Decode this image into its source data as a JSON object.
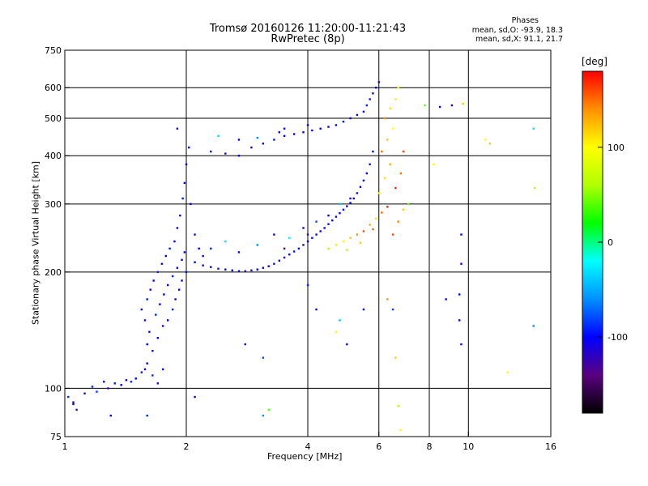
{
  "chart_data": {
    "type": "scatter",
    "title": "Tromsø 20160126 11:20:00-11:21:43",
    "subtitle": "RwPretec (8p)",
    "phase_box": {
      "label": "Phases",
      "line_o": "mean, sd,O: -93.9, 18.3",
      "line_x": "mean, sd,X:  91.1, 21.7"
    },
    "xlabel": "Frequency [MHz]",
    "ylabel": "Stationary phase Virtual Height [km]",
    "xscale": "log",
    "yscale": "log",
    "xlim": [
      1,
      16
    ],
    "ylim": [
      75,
      750
    ],
    "x_ticks": [
      {
        "value": 1,
        "label": "1"
      },
      {
        "value": 2,
        "label": "2"
      },
      {
        "value": 4,
        "label": "4"
      },
      {
        "value": 6,
        "label": "6"
      },
      {
        "value": 8,
        "label": "8"
      },
      {
        "value": 10,
        "label": "10"
      },
      {
        "value": 16,
        "label": "16"
      }
    ],
    "y_ticks": [
      {
        "value": 75,
        "label": "75"
      },
      {
        "value": 100,
        "label": "100"
      },
      {
        "value": 200,
        "label": "200"
      },
      {
        "value": 300,
        "label": "300"
      },
      {
        "value": 400,
        "label": "400"
      },
      {
        "value": 500,
        "label": "500"
      },
      {
        "value": 600,
        "label": "600"
      },
      {
        "value": 750,
        "label": "750"
      }
    ],
    "x_gridlines": [
      2,
      4,
      6,
      8,
      10
    ],
    "y_gridlines": [
      100,
      200,
      300,
      400,
      500,
      600
    ],
    "colorbar": {
      "unit": "[deg]",
      "range": [
        -180,
        180
      ],
      "ticks": [
        {
          "value": 100,
          "label": "100"
        },
        {
          "value": 0,
          "label": "0"
        },
        {
          "value": -100,
          "label": "-100"
        }
      ],
      "colors": [
        "#000000",
        "#5a0080",
        "#0000ff",
        "#0090ff",
        "#00ffff",
        "#00ff00",
        "#b0ff00",
        "#ffff00",
        "#ff9000",
        "#ff0000"
      ]
    },
    "series": [
      {
        "points": [
          [
            1.02,
            95,
            -90
          ],
          [
            1.05,
            92,
            -100
          ],
          [
            1.07,
            88,
            -95
          ],
          [
            1.12,
            97,
            -110
          ],
          [
            1.17,
            101,
            -90
          ],
          [
            1.2,
            98,
            -85
          ],
          [
            1.25,
            104,
            -100
          ],
          [
            1.28,
            100,
            -120
          ],
          [
            1.33,
            103,
            -95
          ],
          [
            1.38,
            102,
            -100
          ],
          [
            1.42,
            105,
            -110
          ],
          [
            1.46,
            104,
            -90
          ],
          [
            1.5,
            106,
            -100
          ],
          [
            1.55,
            110,
            -95
          ],
          [
            1.58,
            112,
            -105
          ],
          [
            1.6,
            116,
            -100
          ],
          [
            1.65,
            108,
            -90
          ],
          [
            1.7,
            103,
            -110
          ],
          [
            1.75,
            112,
            -100
          ],
          [
            1.55,
            160,
            -100
          ],
          [
            1.6,
            170,
            -95
          ],
          [
            1.63,
            180,
            -110
          ],
          [
            1.66,
            190,
            -100
          ],
          [
            1.7,
            200,
            -90
          ],
          [
            1.74,
            210,
            -105
          ],
          [
            1.78,
            220,
            -100
          ],
          [
            1.82,
            230,
            -95
          ],
          [
            1.58,
            150,
            -110
          ],
          [
            1.62,
            140,
            -100
          ],
          [
            1.68,
            155,
            -90
          ],
          [
            1.72,
            165,
            -105
          ],
          [
            1.76,
            175,
            -100
          ],
          [
            1.8,
            185,
            -110
          ],
          [
            1.85,
            195,
            -95
          ],
          [
            1.9,
            205,
            -100
          ],
          [
            1.95,
            215,
            -105
          ],
          [
            1.98,
            225,
            -100
          ],
          [
            1.6,
            130,
            -100
          ],
          [
            1.65,
            125,
            -95
          ],
          [
            1.7,
            135,
            -100
          ],
          [
            1.75,
            145,
            -110
          ],
          [
            1.8,
            150,
            -100
          ],
          [
            1.85,
            160,
            -90
          ],
          [
            1.88,
            170,
            -100
          ],
          [
            1.92,
            180,
            -105
          ],
          [
            1.95,
            190,
            -100
          ],
          [
            2.0,
            200,
            -95
          ],
          [
            1.87,
            240,
            -100
          ],
          [
            1.9,
            260,
            -110
          ],
          [
            1.93,
            280,
            -100
          ],
          [
            1.96,
            310,
            -95
          ],
          [
            1.98,
            340,
            -100
          ],
          [
            2.0,
            380,
            -105
          ],
          [
            2.03,
            420,
            -100
          ],
          [
            1.9,
            470,
            -110
          ],
          [
            2.05,
            300,
            -100
          ],
          [
            2.1,
            250,
            -95
          ],
          [
            2.15,
            230,
            -100
          ],
          [
            2.2,
            220,
            -105
          ],
          [
            2.1,
            212,
            -100
          ],
          [
            2.2,
            208,
            -110
          ],
          [
            2.3,
            206,
            -100
          ],
          [
            2.4,
            204,
            -95
          ],
          [
            2.5,
            203,
            -100
          ],
          [
            2.6,
            202,
            -105
          ],
          [
            2.7,
            201,
            -100
          ],
          [
            2.8,
            201,
            -110
          ],
          [
            2.9,
            202,
            -95
          ],
          [
            3.0,
            203,
            -100
          ],
          [
            3.1,
            205,
            -105
          ],
          [
            3.2,
            207,
            -100
          ],
          [
            3.3,
            210,
            -95
          ],
          [
            3.4,
            214,
            -100
          ],
          [
            3.5,
            218,
            -110
          ],
          [
            3.6,
            222,
            -100
          ],
          [
            3.7,
            226,
            -95
          ],
          [
            3.8,
            230,
            -100
          ],
          [
            3.9,
            235,
            -105
          ],
          [
            4.0,
            240,
            -100
          ],
          [
            4.1,
            245,
            -95
          ],
          [
            4.2,
            250,
            -100
          ],
          [
            4.3,
            255,
            -110
          ],
          [
            4.4,
            260,
            -100
          ],
          [
            4.5,
            266,
            -95
          ],
          [
            4.6,
            272,
            -100
          ],
          [
            4.7,
            278,
            -105
          ],
          [
            4.8,
            284,
            -100
          ],
          [
            4.9,
            290,
            -95
          ],
          [
            5.0,
            296,
            -100
          ],
          [
            5.1,
            302,
            -110
          ],
          [
            5.2,
            310,
            -100
          ],
          [
            5.3,
            320,
            -95
          ],
          [
            5.4,
            332,
            -100
          ],
          [
            5.5,
            345,
            -105
          ],
          [
            5.6,
            360,
            -100
          ],
          [
            5.7,
            380,
            -95
          ],
          [
            5.8,
            410,
            -100
          ],
          [
            2.3,
            230,
            -90
          ],
          [
            2.5,
            240,
            -30
          ],
          [
            2.7,
            225,
            -100
          ],
          [
            3.0,
            235,
            -60
          ],
          [
            3.3,
            250,
            -100
          ],
          [
            3.6,
            245,
            -20
          ],
          [
            3.9,
            260,
            -100
          ],
          [
            4.2,
            270,
            -80
          ],
          [
            4.5,
            280,
            -100
          ],
          [
            4.8,
            300,
            -40
          ],
          [
            5.1,
            310,
            -100
          ],
          [
            3.5,
            230,
            -150
          ],
          [
            4.0,
            250,
            -140
          ],
          [
            2.3,
            410,
            -100
          ],
          [
            2.5,
            405,
            -95
          ],
          [
            2.7,
            400,
            -100
          ],
          [
            2.9,
            420,
            -110
          ],
          [
            3.1,
            430,
            -100
          ],
          [
            3.3,
            440,
            -95
          ],
          [
            3.5,
            450,
            -100
          ],
          [
            3.7,
            455,
            -105
          ],
          [
            3.9,
            460,
            -100
          ],
          [
            4.1,
            465,
            -95
          ],
          [
            4.3,
            470,
            -100
          ],
          [
            4.5,
            475,
            -110
          ],
          [
            4.7,
            480,
            -100
          ],
          [
            4.9,
            490,
            -95
          ],
          [
            5.1,
            500,
            -100
          ],
          [
            5.3,
            510,
            -105
          ],
          [
            5.5,
            520,
            -100
          ],
          [
            5.7,
            560,
            -95
          ],
          [
            5.9,
            600,
            -100
          ],
          [
            6.0,
            620,
            -110
          ],
          [
            5.6,
            540,
            -90
          ],
          [
            5.8,
            580,
            -100
          ],
          [
            3.0,
            445,
            -60
          ],
          [
            3.4,
            460,
            -100
          ],
          [
            4.5,
            230,
            60
          ],
          [
            4.7,
            235,
            80
          ],
          [
            4.9,
            240,
            100
          ],
          [
            5.1,
            245,
            120
          ],
          [
            5.3,
            250,
            140
          ],
          [
            5.5,
            255,
            160
          ],
          [
            5.7,
            265,
            130
          ],
          [
            5.9,
            275,
            110
          ],
          [
            6.1,
            285,
            150
          ],
          [
            6.3,
            295,
            170
          ],
          [
            6.0,
            320,
            90
          ],
          [
            6.2,
            350,
            110
          ],
          [
            6.4,
            380,
            130
          ],
          [
            6.1,
            410,
            150
          ],
          [
            6.3,
            440,
            120
          ],
          [
            6.5,
            470,
            100
          ],
          [
            6.2,
            500,
            140
          ],
          [
            6.4,
            530,
            110
          ],
          [
            6.6,
            560,
            90
          ],
          [
            6.7,
            600,
            100
          ],
          [
            6.5,
            250,
            160
          ],
          [
            6.7,
            270,
            140
          ],
          [
            6.9,
            290,
            120
          ],
          [
            5.0,
            228,
            60
          ],
          [
            5.4,
            238,
            120
          ],
          [
            5.8,
            258,
            150
          ],
          [
            6.6,
            330,
            170
          ],
          [
            6.8,
            360,
            150
          ],
          [
            6.9,
            410,
            160
          ],
          [
            7.1,
            300,
            40
          ],
          [
            7.8,
            540,
            40
          ],
          [
            8.5,
            535,
            -100
          ],
          [
            9.1,
            540,
            -120
          ],
          [
            9.7,
            545,
            120
          ],
          [
            11.0,
            440,
            100
          ],
          [
            11.3,
            430,
            120
          ],
          [
            14.5,
            470,
            -30
          ],
          [
            14.6,
            330,
            60
          ],
          [
            8.2,
            380,
            100
          ],
          [
            9.6,
            250,
            -100
          ],
          [
            9.6,
            210,
            -110
          ],
          [
            9.5,
            175,
            -100
          ],
          [
            9.5,
            150,
            -100
          ],
          [
            9.6,
            130,
            -110
          ],
          [
            12.5,
            110,
            100
          ],
          [
            14.5,
            145,
            -60
          ],
          [
            8.8,
            170,
            -100
          ],
          [
            3.1,
            120,
            -80
          ],
          [
            2.8,
            130,
            -100
          ],
          [
            4.0,
            185,
            -90
          ],
          [
            4.2,
            160,
            -100
          ],
          [
            4.8,
            150,
            -40
          ],
          [
            5.5,
            160,
            -100
          ],
          [
            6.3,
            170,
            140
          ],
          [
            6.5,
            160,
            -80
          ],
          [
            4.7,
            140,
            100
          ],
          [
            5.0,
            130,
            -100
          ],
          [
            6.6,
            120,
            120
          ],
          [
            6.7,
            90,
            60
          ],
          [
            6.8,
            78,
            100
          ],
          [
            3.2,
            88,
            40
          ],
          [
            3.1,
            85,
            -60
          ],
          [
            2.1,
            95,
            -100
          ],
          [
            1.3,
            85,
            -100
          ],
          [
            1.6,
            85,
            -90
          ],
          [
            1.05,
            91,
            -100
          ],
          [
            2.4,
            450,
            -30
          ],
          [
            2.7,
            440,
            -100
          ],
          [
            3.5,
            470,
            -100
          ],
          [
            4.0,
            480,
            -110
          ]
        ]
      }
    ]
  }
}
